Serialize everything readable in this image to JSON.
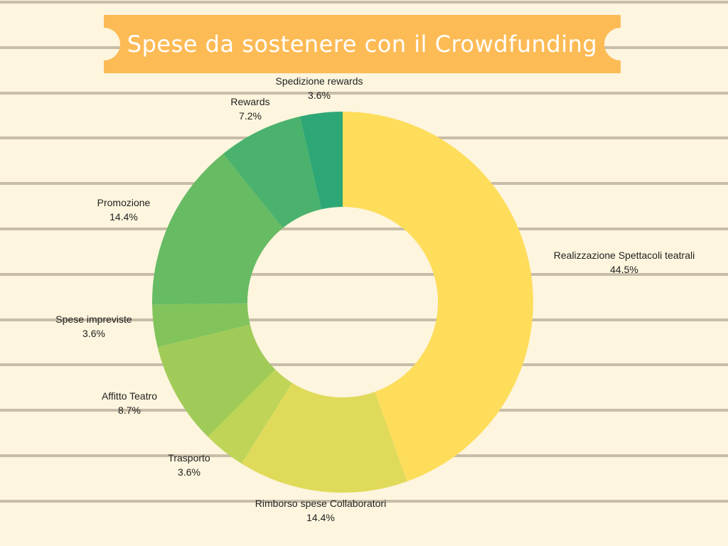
{
  "chart_data": {
    "type": "pie",
    "title": "Spese da sostenere con il Crowdfunding",
    "donut": true,
    "slices": [
      {
        "label": "Realizzazione Spettacoli teatrali",
        "value": 44.5,
        "value_label": "44.5%",
        "color": "#fedd5b"
      },
      {
        "label": "Rimborso spese Collaboratori",
        "value": 14.4,
        "value_label": "14.4%",
        "color": "#e0da5a"
      },
      {
        "label": "Trasporto",
        "value": 3.6,
        "value_label": "3.6%",
        "color": "#c0d558"
      },
      {
        "label": "Affitto Teatro",
        "value": 8.7,
        "value_label": "8.7%",
        "color": "#a1cb58"
      },
      {
        "label": "Spese impreviste",
        "value": 3.6,
        "value_label": "3.6%",
        "color": "#82c35b"
      },
      {
        "label": "Promozione",
        "value": 14.4,
        "value_label": "14.4%",
        "color": "#66bb63"
      },
      {
        "label": "Rewards",
        "value": 7.2,
        "value_label": "7.2%",
        "color": "#4ab26c"
      },
      {
        "label": "Spedizione rewards",
        "value": 3.6,
        "value_label": "3.6%",
        "color": "#2ea776"
      }
    ],
    "start_angle": "12 o'clock",
    "direction": "clockwise"
  },
  "theme": {
    "background": "#fdf5de",
    "line_color": "#c8bda8",
    "banner_color": "#fdbb55",
    "title_color": "#ffffff"
  }
}
